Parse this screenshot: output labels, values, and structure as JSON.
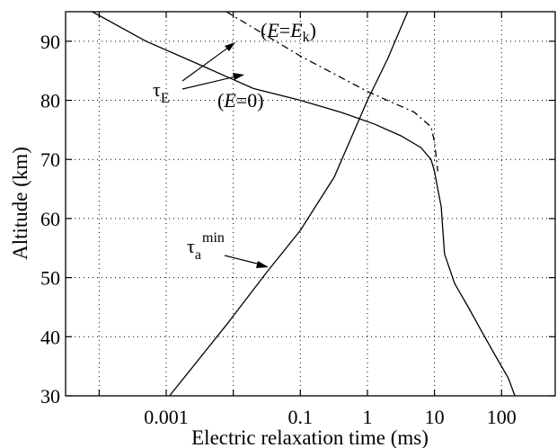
{
  "chart_data": {
    "type": "line",
    "title": "",
    "xlabel": "Electric relaxation time (ms)",
    "ylabel": "Altitude (km)",
    "xscale": "log",
    "xlim": [
      3.16e-05,
      631
    ],
    "ylim": [
      30,
      95
    ],
    "grid": true,
    "xticks": [
      0.001,
      0.1,
      1,
      10,
      100
    ],
    "xtick_labels": [
      "0.001",
      "0.1",
      "1",
      "10",
      "100"
    ],
    "x_minor_ticks": [
      0.0001,
      0.01,
      1000
    ],
    "yticks": [
      30,
      40,
      50,
      60,
      70,
      80,
      90
    ],
    "ytick_labels": [
      "30",
      "40",
      "50",
      "60",
      "70",
      "80",
      "90"
    ],
    "series": [
      {
        "style": "solid",
        "x": [
          7.9e-05,
          0.0005,
          0.0032,
          0.02,
          0.1,
          0.4,
          1.26,
          3.16,
          6.3,
          8.9,
          10,
          11.2,
          12.6,
          14.1,
          20,
          32,
          50,
          79,
          126,
          158
        ],
        "y": [
          95,
          90,
          86,
          82,
          80,
          78,
          76,
          74,
          72,
          70,
          68,
          65,
          62,
          54,
          49,
          45,
          41,
          37,
          33,
          30
        ]
      },
      {
        "style": "dashdot",
        "x": [
          0.0079,
          0.1,
          1,
          5,
          8.9,
          10,
          11.2
        ],
        "y": [
          95,
          87.5,
          81.5,
          78,
          75.5,
          73,
          68
        ]
      },
      {
        "style": "solid",
        "x": [
          0.00112,
          0.0079,
          0.032,
          0.1,
          0.32,
          1,
          2,
          3.98
        ],
        "y": [
          30,
          42,
          51,
          58,
          67,
          80,
          87,
          95
        ]
      }
    ],
    "annotations": [
      {
        "symbol": "τ",
        "sub": "E"
      },
      {
        "prefix": "(",
        "lhs": "E",
        "eq": "=",
        "rhs": "E",
        "rhs_sub": "k",
        "suffix": ")"
      },
      {
        "prefix": "(",
        "lhs": "E",
        "eq": "=0",
        "suffix": ")"
      },
      {
        "symbol": "τ",
        "sub": "a",
        "sup": "min"
      }
    ]
  }
}
